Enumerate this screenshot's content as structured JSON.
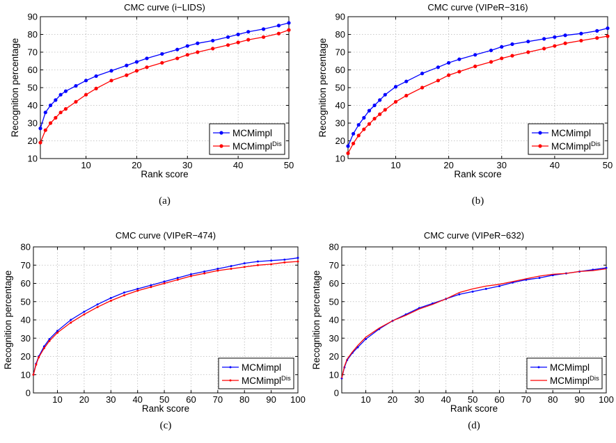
{
  "figure": {
    "colors": {
      "series1": "#0000ff",
      "series2": "#ff0000",
      "grid": "#b8b8b8",
      "axis": "#000000"
    }
  },
  "chart_data": [
    {
      "type": "line",
      "title": "CMC curve (i−LIDS)",
      "xlabel": "Rank score",
      "ylabel": "Recognition percentage",
      "xlim": [
        1,
        50
      ],
      "ylim": [
        10,
        90
      ],
      "xticks": [
        10,
        20,
        30,
        40,
        50
      ],
      "yticks": [
        10,
        20,
        30,
        40,
        50,
        60,
        70,
        80,
        90
      ],
      "grid": true,
      "legend_position": "bottom-right",
      "caption": "(a)",
      "series": [
        {
          "name": "MCMimpl",
          "sup": "",
          "color": "#0000ff",
          "marker": "dot",
          "x": [
            1,
            2,
            3,
            4,
            5,
            6,
            8,
            10,
            12,
            15,
            18,
            20,
            22,
            25,
            28,
            30,
            32,
            35,
            38,
            40,
            42,
            45,
            48,
            50
          ],
          "y": [
            27,
            36,
            40,
            43,
            46,
            48,
            51,
            54,
            56.5,
            59.5,
            62.5,
            64.5,
            66.5,
            69,
            71.5,
            73.5,
            75,
            76.5,
            78.5,
            80,
            81.5,
            83,
            85,
            86.5
          ]
        },
        {
          "name": "MCMimpl",
          "sup": "Dis",
          "color": "#ff0000",
          "marker": "dot",
          "x": [
            1,
            2,
            3,
            4,
            5,
            6,
            8,
            10,
            12,
            15,
            18,
            20,
            22,
            25,
            28,
            30,
            32,
            35,
            38,
            40,
            42,
            45,
            48,
            50
          ],
          "y": [
            19,
            26,
            30,
            33,
            36,
            38,
            42,
            46,
            49.5,
            54,
            57,
            59.5,
            61.5,
            64,
            66.5,
            68.5,
            70,
            72,
            74,
            75.5,
            77,
            78.5,
            80.5,
            82.5
          ]
        }
      ]
    },
    {
      "type": "line",
      "title": "CMC curve (VIPeR−316)",
      "xlabel": "Rank score",
      "ylabel": "Recognition percentage",
      "xlim": [
        1,
        50
      ],
      "ylim": [
        10,
        90
      ],
      "xticks": [
        10,
        20,
        30,
        40,
        50
      ],
      "yticks": [
        10,
        20,
        30,
        40,
        50,
        60,
        70,
        80,
        90
      ],
      "grid": true,
      "legend_position": "bottom-right",
      "caption": "(b)",
      "series": [
        {
          "name": "MCMimpl",
          "sup": "",
          "color": "#0000ff",
          "marker": "dot",
          "x": [
            1,
            2,
            3,
            4,
            5,
            6,
            7,
            8,
            10,
            12,
            15,
            18,
            20,
            22,
            25,
            28,
            30,
            32,
            35,
            38,
            40,
            42,
            45,
            48,
            50
          ],
          "y": [
            17,
            24,
            29,
            33,
            37,
            40,
            43,
            46,
            50.5,
            53.5,
            58,
            61.5,
            64,
            66,
            68.5,
            71,
            73,
            74.5,
            76,
            77.5,
            78.5,
            79.5,
            80.5,
            82,
            83.5
          ]
        },
        {
          "name": "MCMimpl",
          "sup": "Dis",
          "color": "#ff0000",
          "marker": "dot",
          "x": [
            1,
            2,
            3,
            4,
            5,
            6,
            7,
            8,
            10,
            12,
            15,
            18,
            20,
            22,
            25,
            28,
            30,
            32,
            35,
            38,
            40,
            42,
            45,
            48,
            50
          ],
          "y": [
            13,
            18.5,
            23,
            26.5,
            29.5,
            32.5,
            35,
            37.5,
            42,
            45.5,
            50,
            54,
            57,
            59,
            62,
            64.5,
            66.5,
            68,
            70,
            72,
            73.5,
            75,
            76.5,
            78,
            79
          ]
        }
      ]
    },
    {
      "type": "line",
      "title": "CMC curve (VIPeR−474)",
      "xlabel": "Rank score",
      "ylabel": "Recognition percentage",
      "xlim": [
        1,
        100
      ],
      "ylim": [
        0,
        80
      ],
      "xticks": [
        10,
        20,
        30,
        40,
        50,
        60,
        70,
        80,
        90,
        100
      ],
      "yticks": [
        0,
        10,
        20,
        30,
        40,
        50,
        60,
        70,
        80
      ],
      "grid": true,
      "legend_position": "bottom-right",
      "caption": "(c)",
      "series": [
        {
          "name": "MCMimpl",
          "sup": "",
          "color": "#0000ff",
          "marker": "small-dot",
          "x": [
            1,
            2,
            3,
            5,
            7,
            10,
            15,
            20,
            25,
            30,
            35,
            40,
            45,
            50,
            55,
            60,
            65,
            70,
            75,
            80,
            85,
            90,
            95,
            100
          ],
          "y": [
            10,
            16,
            20,
            25.5,
            29.5,
            34,
            40,
            44.5,
            48.5,
            52,
            55,
            57,
            59,
            61,
            63,
            65,
            66.5,
            68,
            69.5,
            71,
            72,
            72.5,
            73,
            74
          ]
        },
        {
          "name": "MCMimpl",
          "sup": "Dis",
          "color": "#ff0000",
          "marker": "small-dot",
          "x": [
            1,
            2,
            3,
            5,
            7,
            10,
            15,
            20,
            25,
            30,
            35,
            40,
            45,
            50,
            55,
            60,
            65,
            70,
            75,
            80,
            85,
            90,
            95,
            100
          ],
          "y": [
            10,
            15.5,
            19.5,
            24.5,
            28.5,
            33,
            38.5,
            43,
            47,
            50.5,
            53.5,
            56,
            58,
            60,
            62,
            64,
            65.5,
            67,
            68,
            69,
            70,
            70.5,
            71.5,
            72
          ]
        }
      ]
    },
    {
      "type": "line",
      "title": "CMC curve (VIPeR−632)",
      "xlabel": "Rank score",
      "ylabel": "Recognition percentage",
      "xlim": [
        1,
        100
      ],
      "ylim": [
        0,
        80
      ],
      "xticks": [
        10,
        20,
        30,
        40,
        50,
        60,
        70,
        80,
        90,
        100
      ],
      "yticks": [
        0,
        10,
        20,
        30,
        40,
        50,
        60,
        70,
        80
      ],
      "grid": true,
      "legend_position": "bottom-right",
      "caption": "(d)",
      "series": [
        {
          "name": "MCMimpl",
          "sup": "",
          "color": "#0000ff",
          "marker": "small-dot",
          "x": [
            1,
            2,
            3,
            5,
            7,
            10,
            15,
            20,
            25,
            30,
            35,
            40,
            45,
            50,
            55,
            60,
            65,
            70,
            75,
            80,
            85,
            90,
            95,
            100
          ],
          "y": [
            8,
            14,
            18,
            22,
            25,
            29.5,
            35,
            39.5,
            43,
            46.5,
            49,
            51.5,
            54,
            55.5,
            57,
            58.5,
            60.5,
            62,
            63,
            64.5,
            65.5,
            66.5,
            67.5,
            68.5
          ]
        },
        {
          "name": "MCMimpl",
          "sup": "Dis",
          "color": "#ff0000",
          "marker": "none",
          "x": [
            1,
            2,
            3,
            5,
            7,
            10,
            15,
            20,
            25,
            30,
            35,
            40,
            45,
            50,
            55,
            60,
            65,
            70,
            75,
            80,
            85,
            90,
            95,
            100
          ],
          "y": [
            8,
            14.5,
            18.5,
            22.5,
            26,
            30.5,
            35.5,
            39.5,
            42.5,
            46,
            48.5,
            51.5,
            55,
            57,
            58.5,
            59.5,
            61,
            62.5,
            64,
            65,
            65.5,
            66.5,
            67,
            68
          ]
        }
      ]
    }
  ]
}
